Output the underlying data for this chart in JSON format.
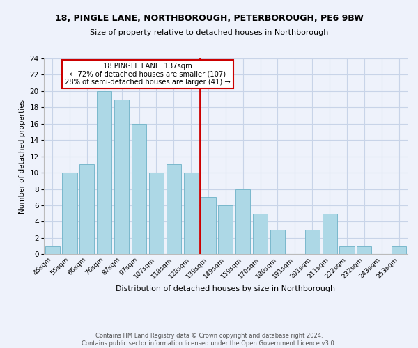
{
  "title": "18, PINGLE LANE, NORTHBOROUGH, PETERBOROUGH, PE6 9BW",
  "subtitle": "Size of property relative to detached houses in Northborough",
  "xlabel": "Distribution of detached houses by size in Northborough",
  "ylabel": "Number of detached properties",
  "bin_labels": [
    "45sqm",
    "55sqm",
    "66sqm",
    "76sqm",
    "87sqm",
    "97sqm",
    "107sqm",
    "118sqm",
    "128sqm",
    "139sqm",
    "149sqm",
    "159sqm",
    "170sqm",
    "180sqm",
    "191sqm",
    "201sqm",
    "211sqm",
    "222sqm",
    "232sqm",
    "243sqm",
    "253sqm"
  ],
  "bar_values": [
    1,
    10,
    11,
    20,
    19,
    16,
    10,
    11,
    10,
    7,
    6,
    8,
    5,
    3,
    0,
    3,
    5,
    1,
    1,
    0,
    1
  ],
  "bar_color": "#add8e6",
  "bar_edge_color": "#7ab8cc",
  "highlight_line_color": "#cc0000",
  "annotation_title": "18 PINGLE LANE: 137sqm",
  "annotation_line1": "← 72% of detached houses are smaller (107)",
  "annotation_line2": "28% of semi-detached houses are larger (41) →",
  "annotation_box_color": "#ffffff",
  "annotation_box_edge": "#cc0000",
  "ylim": [
    0,
    24
  ],
  "yticks": [
    0,
    2,
    4,
    6,
    8,
    10,
    12,
    14,
    16,
    18,
    20,
    22,
    24
  ],
  "footer_line1": "Contains HM Land Registry data © Crown copyright and database right 2024.",
  "footer_line2": "Contains public sector information licensed under the Open Government Licence v3.0.",
  "background_color": "#eef2fb",
  "grid_color": "#c8d4e8"
}
